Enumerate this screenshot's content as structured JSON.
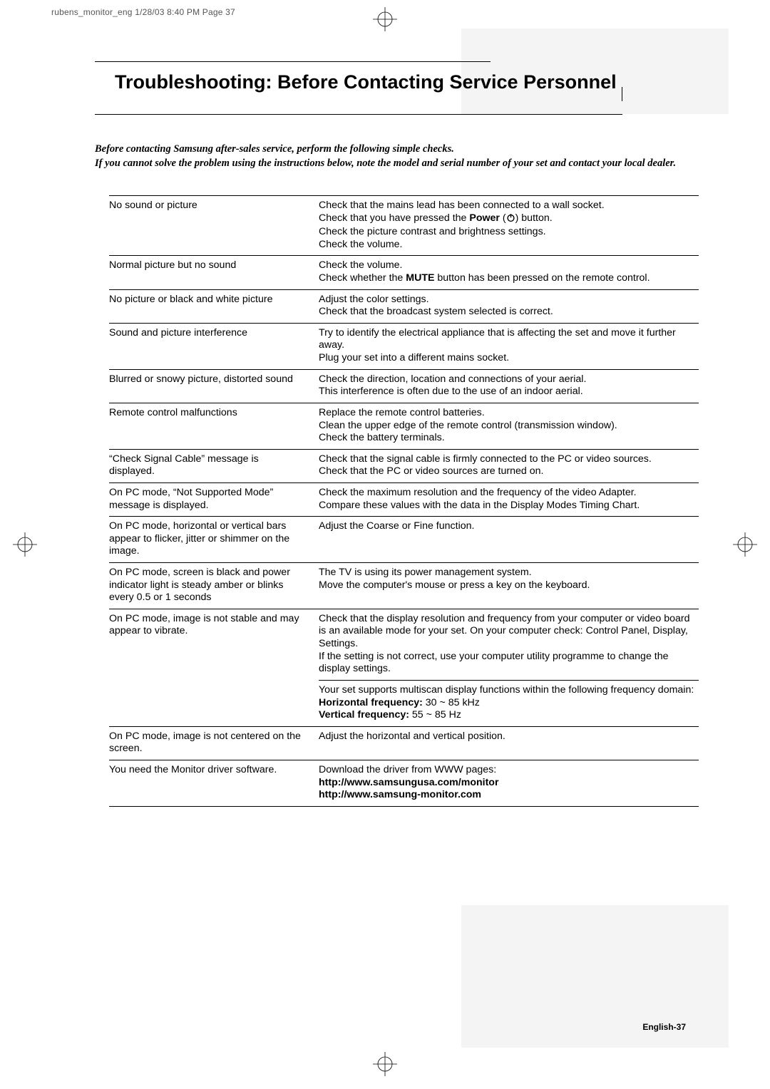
{
  "print_header": "rubens_monitor_eng  1/28/03 8:40 PM  Page 37",
  "title": "Troubleshooting: Before Contacting Service Personnel",
  "intro_line1": "Before contacting Samsung after-sales service, perform the following simple checks.",
  "intro_line2": "If you cannot solve the problem using the instructions below, note the model and serial number of your set and contact your local dealer.",
  "rows": [
    {
      "problem": "No sound or picture",
      "solution_html": "Check that the mains lead has been connected to a wall socket.<br>Check that you have pressed the <b>Power</b> (<span class='power-icon'><svg width='13' height='13' viewBox='0 0 13 13'><circle cx='6.5' cy='7' r='4.4' fill='none' stroke='#000' stroke-width='1.4'/><line x1='6.5' y1='1.2' x2='6.5' y2='6.3' stroke='#000' stroke-width='1.4'/></svg></span>) button.<br>Check the picture contrast and brightness settings.<br>Check the volume."
    },
    {
      "problem": "Normal picture but no sound",
      "solution_html": "Check the volume.<br>Check whether the <b>MUTE</b> button has been pressed on the remote control."
    },
    {
      "problem": "No picture or black and white picture",
      "solution_html": "Adjust the color settings.<br>Check that the broadcast system selected is correct."
    },
    {
      "problem": "Sound and picture interference",
      "solution_html": "Try to identify the electrical appliance that is affecting the set and move it further away.<br>Plug your set into a different mains socket."
    },
    {
      "problem": "Blurred or snowy picture, distorted sound",
      "solution_html": "Check the direction, location and connections of your aerial.<br>This interference is often due to the use of an indoor aerial."
    },
    {
      "problem": "Remote control malfunctions",
      "solution_html": "Replace the remote control batteries.<br>Clean the upper edge of the remote control (transmission window).<br>Check the battery terminals."
    },
    {
      "problem": "“Check Signal Cable” message is displayed.",
      "solution_html": "Check that the signal cable is firmly connected to the PC or video sources.<br>Check that the PC or video sources are turned on."
    },
    {
      "problem": "On PC mode, “Not Supported Mode” message is displayed.",
      "solution_html": "Check the maximum resolution and the frequency of the video Adapter.<br>Compare these values with the data in the Display Modes Timing Chart."
    },
    {
      "problem": "On PC mode, horizontal or vertical bars appear to flicker, jitter or shimmer on the image.",
      "solution_html": "Adjust the Coarse or Fine function."
    },
    {
      "problem": "On PC mode, screen is black and power indicator light is steady amber or blinks every 0.5 or 1 seconds",
      "solution_html": "The TV is using its power management system.<br>Move the computer's mouse or press a key on the keyboard."
    },
    {
      "problem": "On PC mode, image is not stable and may appear to vibrate.",
      "solution_html": "Check that the display resolution and frequency from your computer or video board is an available mode for your set. On your computer check: Control Panel, Display, Settings.<br>If the setting is not correct, use your computer utility programme to change the display settings.<div class='sub'>Your set supports multiscan display functions within the following frequency domain:<br><b>Horizontal frequency:</b> 30 ~ 85 kHz<br><b>Vertical frequency:</b> 55 ~ 85 Hz</div>"
    },
    {
      "problem": "On PC mode, image is not centered on the screen.",
      "solution_html": "Adjust the horizontal and vertical position."
    },
    {
      "problem": "You need the Monitor driver software.",
      "solution_html": "Download the driver from WWW pages:<br><b>http://www.samsungusa.com/monitor<br>http://www.samsung-monitor.com</b>"
    }
  ],
  "page_number": "English-37",
  "colors": {
    "grey_band": "#f4f4f4",
    "text": "#000000",
    "bg": "#ffffff"
  }
}
